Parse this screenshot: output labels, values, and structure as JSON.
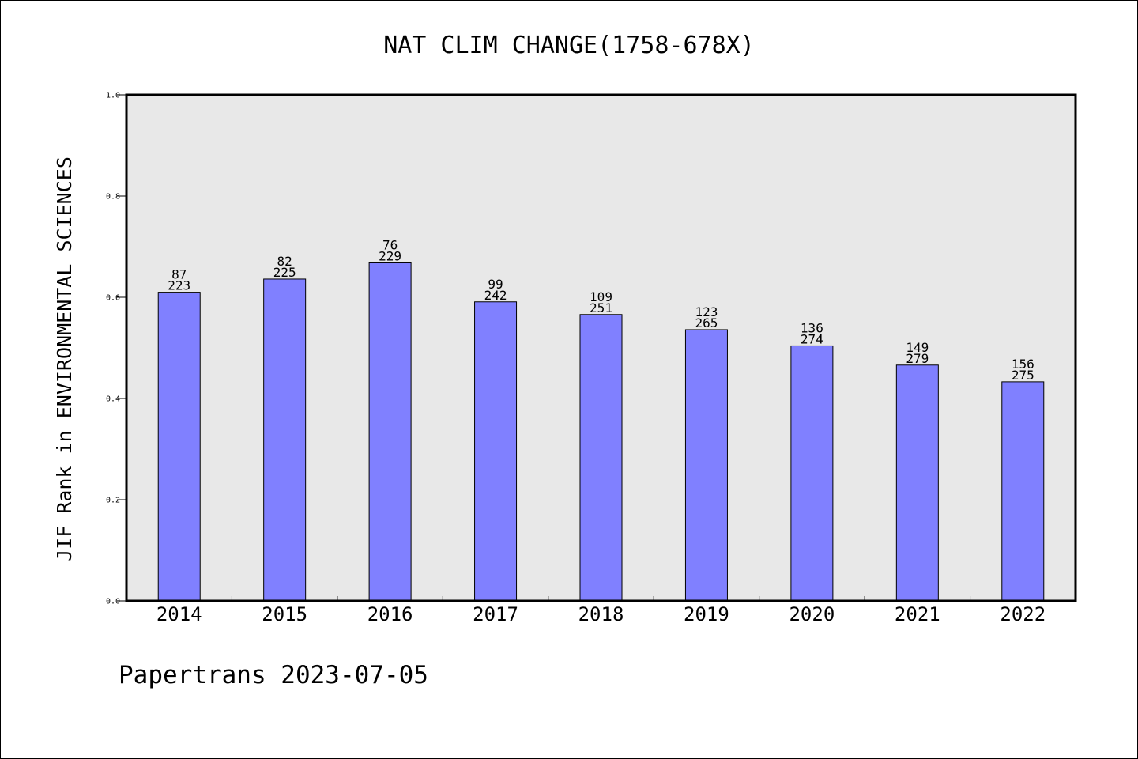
{
  "chart_data": {
    "type": "bar",
    "title": "NAT CLIM CHANGE(1758-678X)",
    "xlabel": "",
    "ylabel": "JIF Rank in ENVIRONMENTAL SCIENCES",
    "ylim": [
      0,
      1.0
    ],
    "yticks": [
      "0.0",
      "0.2",
      "0.4",
      "0.6",
      "0.8",
      "1.0"
    ],
    "categories": [
      "2014",
      "2015",
      "2016",
      "2017",
      "2018",
      "2019",
      "2020",
      "2021",
      "2022"
    ],
    "values": [
      0.61,
      0.636,
      0.668,
      0.591,
      0.566,
      0.536,
      0.504,
      0.466,
      0.433
    ],
    "rank_labels": [
      "87",
      "82",
      "76",
      "99",
      "109",
      "123",
      "136",
      "149",
      "156"
    ],
    "total_labels": [
      "223",
      "225",
      "229",
      "242",
      "251",
      "265",
      "274",
      "279",
      "275"
    ],
    "grid": false,
    "legend": "none"
  },
  "colors": {
    "bar_fill": "#8080ff",
    "plot_background": "#e8e8e8",
    "axis": "#000000"
  },
  "footer": {
    "source": "Papertrans 2023-07-05"
  }
}
